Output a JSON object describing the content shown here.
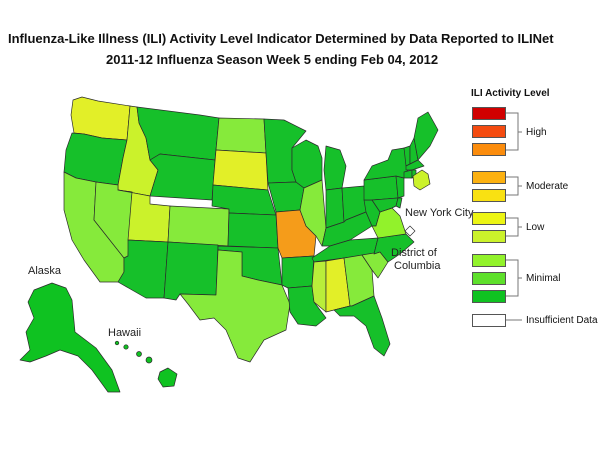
{
  "title": {
    "line1": "Influenza-Like Illness (ILI) Activity Level Indicator Determined by Data Reported to ILINet",
    "line2": "2011-12  Influenza Season Week  5 ending Feb 04, 2012"
  },
  "map_labels": {
    "alaska": "Alaska",
    "hawaii": "Hawaii",
    "nyc": "New York City",
    "dc_line1": "District of",
    "dc_line2": "Columbia"
  },
  "legend": {
    "title": "ILI Activity Level",
    "groups": [
      "High",
      "Moderate",
      "Low",
      "Minimal",
      "Insufficient Data"
    ],
    "colors": {
      "level10": "#d10000",
      "level9": "#f44b10",
      "level8": "#fb8c0c",
      "level7": "#fcb111",
      "level6": "#f9e112",
      "level5": "#ecf514",
      "level4": "#cbf22b",
      "level3": "#92f22b",
      "level2": "#5ee02b",
      "level1": "#0fc221",
      "insufficient": "#ffffff"
    }
  },
  "colors": {
    "orange_state": "#f59c1a",
    "yellow_state": "#e2ef28",
    "lime_state": "#b9ee3a",
    "light_green_state": "#86ea3b",
    "green_state": "#16c02a",
    "border": "#2b2b2b"
  }
}
